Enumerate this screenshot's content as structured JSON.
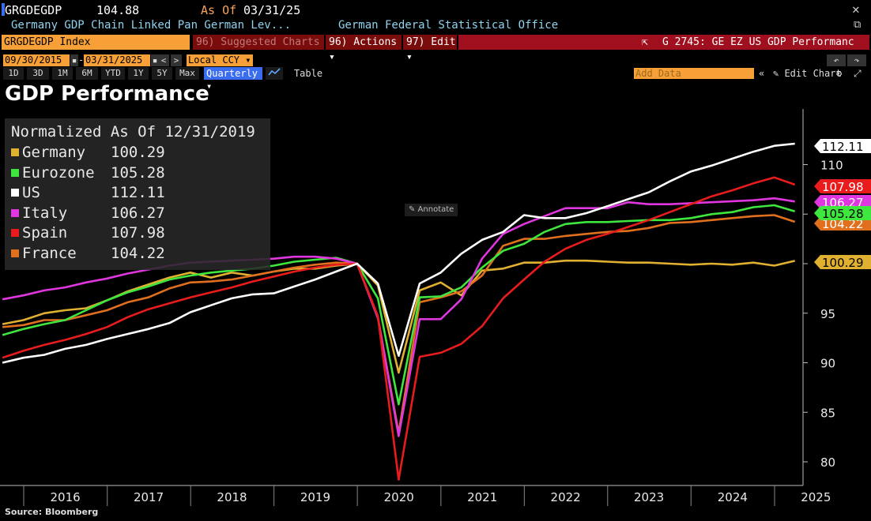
{
  "header": {
    "ticker": "GRGDEGDP",
    "price": "104.88",
    "asof_label": "As Of",
    "asof_date": "03/31/25",
    "close_icon": "close-icon",
    "description": "Germany GDP Chain Linked Pan German Lev...",
    "source_name": "German Federal Statistical Office",
    "popout_icon": "popout-icon"
  },
  "toolbar": {
    "security": "GRGDEGDP Index",
    "suggested": "96) Suggested Charts ▾",
    "actions": "96) Actions ▾",
    "edit": "97) Edit ▾",
    "chart_id_icon": "⇱",
    "chart_id": "G 2745: GE EZ US GDP Performanc",
    "start_date": "09/30/2015",
    "end_date": "03/31/2025",
    "dash": "-",
    "prev": "<",
    "next": ">",
    "currency": "Local CCY ▾",
    "undo": "↶",
    "redo": "↷",
    "periods": [
      "1D",
      "3D",
      "1M",
      "6M",
      "YTD",
      "1Y",
      "5Y",
      "Max"
    ],
    "frequency": "Quarterly ▾",
    "chart_type_icon": "line-chart-icon",
    "table": "Table",
    "add_data_placeholder": "Add Data",
    "collapse": "«",
    "edit_chart": "✎ Edit Chart",
    "settings_icon": "⚙",
    "expand_icon": "⤢"
  },
  "title": "GDP Performance",
  "annotate": "✎ Annotate",
  "source_note": "Source: Bloomberg",
  "colors": {
    "Germany": "#e0b030",
    "Eurozone": "#3ee63e",
    "US": "#ffffff",
    "Italy": "#e036e0",
    "Spain": "#e81c1c",
    "France": "#e0701e"
  },
  "chart_data": {
    "type": "line",
    "title": "GDP Performance",
    "subtitle": "Normalized As Of 12/31/2019",
    "x": [
      "2015-09-30",
      "2015-12-31",
      "2016-03-31",
      "2016-06-30",
      "2016-09-30",
      "2016-12-31",
      "2017-03-31",
      "2017-06-30",
      "2017-09-30",
      "2017-12-31",
      "2018-03-31",
      "2018-06-30",
      "2018-09-30",
      "2018-12-31",
      "2019-03-31",
      "2019-06-30",
      "2019-09-30",
      "2019-12-31",
      "2020-03-31",
      "2020-06-30",
      "2020-09-30",
      "2020-12-31",
      "2021-03-31",
      "2021-06-30",
      "2021-09-30",
      "2021-12-31",
      "2022-03-31",
      "2022-06-30",
      "2022-09-30",
      "2022-12-31",
      "2023-03-31",
      "2023-06-30",
      "2023-09-30",
      "2023-12-31",
      "2024-03-31",
      "2024-06-30",
      "2024-09-30",
      "2024-12-31",
      "2025-03-31"
    ],
    "xticks": [
      "2016",
      "2017",
      "2018",
      "2019",
      "2020",
      "2021",
      "2022",
      "2023",
      "2024",
      "2025"
    ],
    "yticks": [
      80,
      85,
      90,
      95,
      100,
      105,
      110
    ],
    "ylim": [
      78,
      115
    ],
    "legend_placement": "top-left",
    "grid": false,
    "series": [
      {
        "name": "Germany",
        "last": "100.29",
        "values": [
          93.9,
          94.3,
          95.0,
          95.3,
          95.5,
          96.3,
          97.2,
          97.9,
          98.6,
          99.1,
          98.6,
          99.1,
          98.8,
          99.2,
          99.5,
          99.5,
          99.8,
          100.0,
          97.8,
          89.0,
          97.3,
          98.1,
          96.8,
          99.3,
          99.5,
          100.1,
          100.1,
          100.3,
          100.3,
          100.2,
          100.1,
          100.1,
          100.0,
          99.9,
          100.0,
          99.9,
          100.1,
          99.8,
          100.29
        ]
      },
      {
        "name": "Eurozone",
        "last": "105.28",
        "values": [
          92.8,
          93.4,
          93.9,
          94.3,
          95.3,
          96.3,
          97.1,
          97.7,
          98.4,
          98.8,
          99.1,
          99.3,
          99.5,
          99.8,
          100.2,
          100.4,
          100.6,
          100.0,
          96.5,
          85.8,
          96.6,
          96.7,
          97.6,
          99.6,
          101.3,
          102.0,
          103.2,
          104.0,
          104.2,
          104.2,
          104.3,
          104.4,
          104.4,
          104.6,
          105.0,
          105.2,
          105.7,
          105.9,
          105.28
        ]
      },
      {
        "name": "US",
        "last": "112.11",
        "values": [
          90.0,
          90.5,
          90.8,
          91.4,
          91.8,
          92.4,
          92.9,
          93.4,
          94.0,
          95.1,
          95.8,
          96.5,
          96.9,
          97.0,
          97.7,
          98.4,
          99.2,
          100.0,
          98.0,
          90.7,
          98.0,
          99.1,
          101.0,
          102.4,
          103.2,
          104.9,
          104.6,
          104.6,
          105.1,
          105.8,
          106.5,
          107.2,
          108.3,
          109.3,
          109.9,
          110.6,
          111.3,
          111.9,
          112.11
        ]
      },
      {
        "name": "Italy",
        "last": "106.27",
        "values": [
          96.4,
          96.8,
          97.3,
          97.6,
          98.1,
          98.5,
          99.0,
          99.4,
          99.8,
          100.1,
          100.2,
          100.3,
          100.4,
          100.5,
          100.7,
          100.7,
          100.5,
          100.0,
          94.5,
          82.6,
          94.4,
          94.4,
          96.4,
          100.5,
          103.0,
          104.0,
          104.8,
          105.6,
          105.6,
          105.6,
          106.2,
          106.0,
          106.0,
          106.1,
          106.2,
          106.3,
          106.4,
          106.6,
          106.27
        ]
      },
      {
        "name": "Spain",
        "last": "107.98",
        "values": [
          90.5,
          91.2,
          91.8,
          92.3,
          92.9,
          93.6,
          94.6,
          95.4,
          96.0,
          96.6,
          97.1,
          97.6,
          98.2,
          98.7,
          99.2,
          99.6,
          99.9,
          100.0,
          94.7,
          78.2,
          90.6,
          91.0,
          91.9,
          93.7,
          96.5,
          98.4,
          100.2,
          101.5,
          102.4,
          103.0,
          103.7,
          104.4,
          105.2,
          106.0,
          106.8,
          107.4,
          108.1,
          108.7,
          107.98
        ]
      },
      {
        "name": "France",
        "last": "104.22",
        "values": [
          93.6,
          93.8,
          94.3,
          94.3,
          94.8,
          95.3,
          96.1,
          96.6,
          97.5,
          98.1,
          98.2,
          98.4,
          98.8,
          99.2,
          99.6,
          99.9,
          100.1,
          100.0,
          94.6,
          82.9,
          96.1,
          96.6,
          97.2,
          98.8,
          101.8,
          102.5,
          102.5,
          102.8,
          103.0,
          103.2,
          103.3,
          103.6,
          104.1,
          104.2,
          104.4,
          104.6,
          104.8,
          104.9,
          104.22
        ]
      }
    ]
  }
}
